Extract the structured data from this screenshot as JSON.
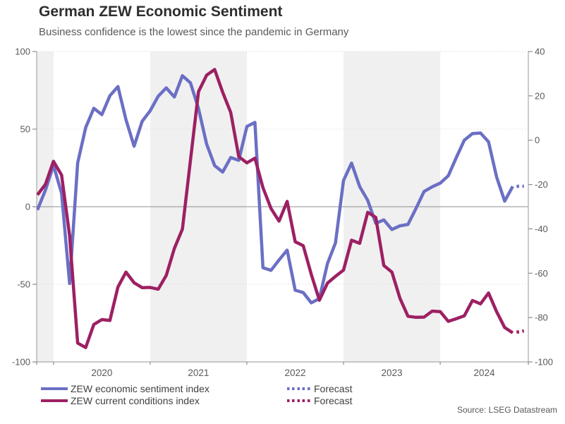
{
  "header": {
    "title": "German ZEW Economic Sentiment",
    "subtitle": "Business confidence is the lowest since the pandemic in Germany"
  },
  "source": "Source: LSEG Datastream",
  "colors": {
    "sentiment": "#6B6FC4",
    "conditions": "#9D2063",
    "band": "#F0F0F0",
    "axis_line": "#A9A9A9",
    "zero_line": "#8C8C8C",
    "grid_dot": "#DBDBDB",
    "tick_text": "#595959"
  },
  "legend": {
    "series": [
      {
        "label": "ZEW economic sentiment index",
        "color": "#6B6FC4"
      },
      {
        "label": "ZEW current conditions index",
        "color": "#9D2063"
      }
    ],
    "forecast": [
      {
        "label": "Forecast",
        "color": "#6B6FC4"
      },
      {
        "label": "Forecast",
        "color": "#9D2063"
      }
    ]
  },
  "chart_data": {
    "type": "line",
    "title": "German ZEW Economic Sentiment",
    "x_monthly_start": "2019-11",
    "x_monthly_end": "2024-10",
    "forecast_month": "2024-11",
    "x_tick_labels": [
      "2020",
      "2021",
      "2022",
      "2023",
      "2024"
    ],
    "left_axis": {
      "range": [
        -100,
        100
      ],
      "ticks": [
        100,
        50,
        0,
        -50,
        -100
      ]
    },
    "right_axis": {
      "range": [
        -100,
        40
      ],
      "ticks": [
        40,
        20,
        0,
        -20,
        -40,
        -60,
        -80,
        -100
      ]
    },
    "gridlines_left_values": [
      100,
      50,
      -50
    ],
    "zero_line_left_value": 0,
    "legend_position": "bottom",
    "series": [
      {
        "name": "ZEW economic sentiment index",
        "axis": "left",
        "color": "#6B6FC4",
        "values": [
          -2.1,
          10.7,
          26.7,
          8.7,
          -49.5,
          28.2,
          51.0,
          63.4,
          59.3,
          71.5,
          77.4,
          56.1,
          39.0,
          55.0,
          61.8,
          71.2,
          76.6,
          70.7,
          84.4,
          79.8,
          63.3,
          40.4,
          26.5,
          22.3,
          31.7,
          29.9,
          51.7,
          54.3,
          -39.3,
          -41.0,
          -34.3,
          -28.0,
          -53.8,
          -55.3,
          -61.9,
          -59.2,
          -36.7,
          -23.3,
          16.9,
          28.1,
          13.0,
          4.1,
          -10.7,
          -8.5,
          -14.7,
          -12.3,
          -11.4,
          -1.1,
          9.8,
          12.8,
          15.2,
          19.9,
          31.7,
          42.9,
          47.1,
          47.5,
          41.8,
          19.2,
          3.6,
          13.1
        ],
        "forecast_value": 13.2
      },
      {
        "name": "ZEW current conditions index",
        "axis": "right",
        "color": "#9D2063",
        "values": [
          -24.7,
          -19.9,
          -9.5,
          -15.7,
          -43.1,
          -91.5,
          -93.5,
          -83.1,
          -80.9,
          -81.3,
          -66.2,
          -59.5,
          -64.3,
          -66.5,
          -66.4,
          -67.2,
          -61.0,
          -48.8,
          -40.1,
          -9.1,
          21.9,
          29.3,
          31.9,
          21.6,
          12.5,
          -7.4,
          -10.2,
          -8.1,
          -21.4,
          -30.8,
          -36.5,
          -27.6,
          -45.8,
          -47.6,
          -60.5,
          -72.2,
          -64.5,
          -61.4,
          -58.6,
          -45.1,
          -46.5,
          -32.5,
          -34.8,
          -56.5,
          -59.5,
          -71.3,
          -79.4,
          -79.9,
          -79.8,
          -77.1,
          -77.3,
          -81.7,
          -80.5,
          -79.2,
          -72.3,
          -73.8,
          -68.9,
          -77.3,
          -84.5,
          -86.9
        ],
        "forecast_value": -86.0
      }
    ]
  }
}
